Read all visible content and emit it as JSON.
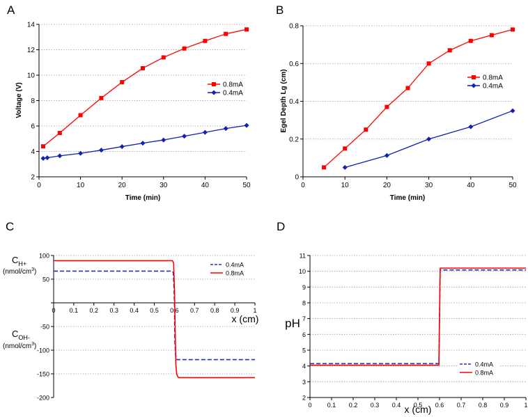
{
  "chart_data": [
    {
      "panel": "A",
      "type": "line",
      "xlabel": "Time (min)",
      "ylabel": "Voltage (V)",
      "xlim": [
        0,
        50
      ],
      "ylim": [
        2,
        14
      ],
      "xticks": [
        0,
        10,
        20,
        30,
        40,
        50
      ],
      "yticks": [
        2,
        4,
        6,
        8,
        10,
        12,
        14
      ],
      "grid": true,
      "legend": "center-right",
      "series": [
        {
          "name": "0.8mA",
          "color": "#ff0000",
          "marker": "square",
          "x": [
            1,
            5,
            10,
            15,
            20,
            25,
            30,
            35,
            40,
            45,
            50
          ],
          "y": [
            4.4,
            5.45,
            6.85,
            8.2,
            9.45,
            10.55,
            11.4,
            12.1,
            12.7,
            13.25,
            13.6
          ]
        },
        {
          "name": "0.4mA",
          "color": "#1020b0",
          "marker": "diamond",
          "x": [
            1,
            2,
            5,
            10,
            15,
            20,
            25,
            30,
            35,
            40,
            45,
            50
          ],
          "y": [
            3.45,
            3.5,
            3.65,
            3.85,
            4.1,
            4.38,
            4.65,
            4.9,
            5.2,
            5.5,
            5.8,
            6.05
          ]
        }
      ]
    },
    {
      "panel": "B",
      "type": "line",
      "xlabel": "Time (min)",
      "ylabel": "Egel Depth Lg (cm)",
      "xlim": [
        0,
        50
      ],
      "ylim": [
        0,
        0.8
      ],
      "xticks": [
        0,
        10,
        20,
        30,
        40,
        50
      ],
      "yticks": [
        0,
        0.2,
        0.4,
        0.6,
        0.8
      ],
      "grid": true,
      "legend": "center-right",
      "series": [
        {
          "name": "0.8mA",
          "color": "#ff0000",
          "marker": "square",
          "x": [
            5,
            10,
            15,
            20,
            25,
            30,
            35,
            40,
            45,
            50
          ],
          "y": [
            0.05,
            0.15,
            0.25,
            0.37,
            0.47,
            0.6,
            0.67,
            0.72,
            0.75,
            0.78
          ]
        },
        {
          "name": "0.4mA",
          "color": "#1020b0",
          "marker": "diamond",
          "x": [
            10,
            20,
            30,
            40,
            50
          ],
          "y": [
            0.05,
            0.113,
            0.2,
            0.265,
            0.35
          ]
        }
      ]
    },
    {
      "panel": "C",
      "type": "line",
      "xlabel": "x (cm)",
      "ylabel_top": "C",
      "ylabel_top_sub": "H+",
      "ylabel_bottom": "C",
      "ylabel_bottom_sub": "OH-",
      "unit_label": "(nmol/cm",
      "unit_sup": "3",
      "unit_close": ")",
      "xlim": [
        0,
        1
      ],
      "ylim": [
        -200,
        100
      ],
      "xticks": [
        "0",
        "0.1",
        "0.2",
        "0.3",
        "0.4",
        "0.5",
        "0.6",
        "0.7",
        "0.8",
        "0.9",
        "1"
      ],
      "yticks": [
        "-200",
        "-150",
        "-100",
        "-50",
        "",
        "50",
        "100"
      ],
      "grid": true,
      "legend": "top-right",
      "series": [
        {
          "name": "0.4mA",
          "color": "#2233bb",
          "dash": "dashed",
          "x": [
            0,
            0.588,
            0.594,
            0.598,
            0.6,
            0.602,
            0.606,
            0.612,
            1
          ],
          "y": [
            67,
            67,
            64,
            30,
            0,
            -80,
            -110,
            -120,
            -120
          ]
        },
        {
          "name": "0.8mA",
          "color": "#ff0000",
          "dash": "solid",
          "x": [
            0,
            0.59,
            0.596,
            0.6,
            0.603,
            0.607,
            0.612,
            0.62,
            1
          ],
          "y": [
            89,
            89,
            84,
            30,
            -40,
            -130,
            -152,
            -158,
            -158
          ]
        }
      ]
    },
    {
      "panel": "D",
      "type": "line",
      "xlabel": "x (cm)",
      "ylabel": "pH",
      "xlim": [
        0,
        1
      ],
      "ylim": [
        2,
        11
      ],
      "xticks": [
        "0",
        "0.1",
        "0.2",
        "0.3",
        "0.4",
        "0.5",
        "0.6",
        "0.7",
        "0.8",
        "0.9",
        "1"
      ],
      "yticks": [
        "2",
        "3",
        "4",
        "5",
        "6",
        "7",
        "8",
        "9",
        "10",
        "11"
      ],
      "grid": true,
      "legend": "bottom-right",
      "series": [
        {
          "name": "0.4mA",
          "color": "#2233bb",
          "dash": "dashed",
          "x": [
            0,
            0.597,
            0.6,
            0.603,
            1
          ],
          "y": [
            4.15,
            4.15,
            7.1,
            10.08,
            10.08
          ]
        },
        {
          "name": "0.8mA",
          "color": "#ff0000",
          "dash": "solid",
          "x": [
            0,
            0.597,
            0.6,
            0.603,
            1
          ],
          "y": [
            4.05,
            4.05,
            7.2,
            10.2,
            10.2
          ]
        }
      ]
    }
  ]
}
